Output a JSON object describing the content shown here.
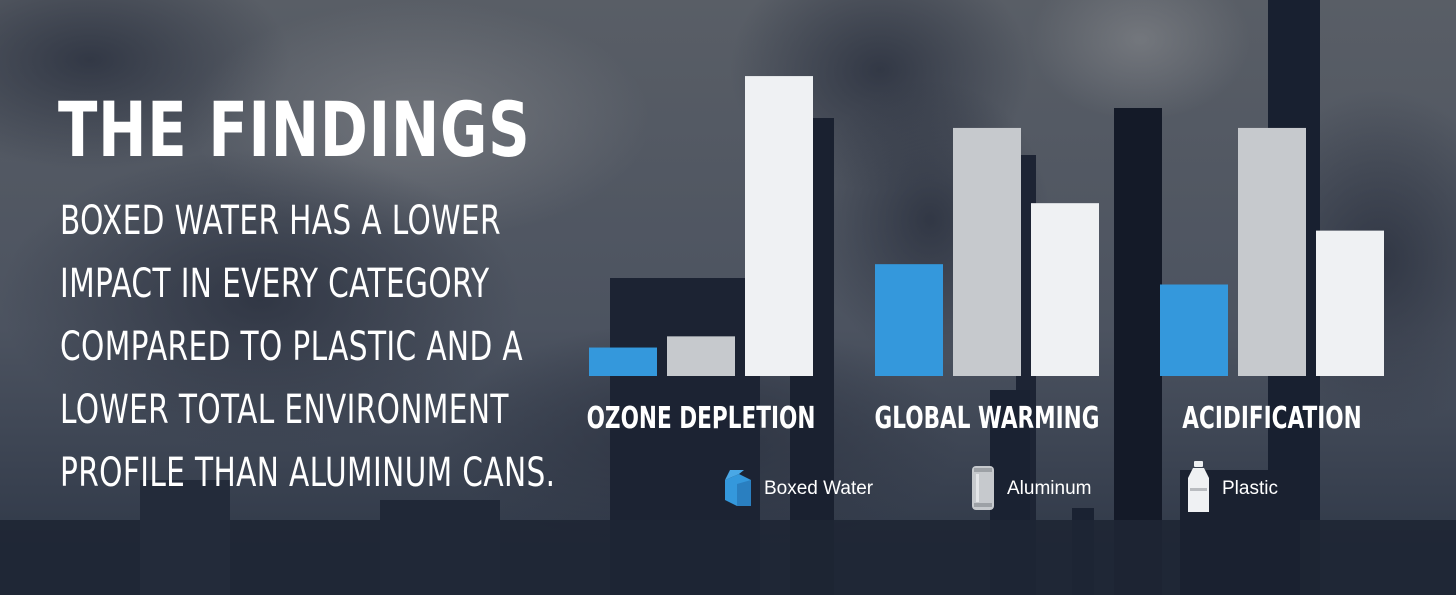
{
  "headline": "THE FINDINGS",
  "body_text": "BOXED WATER HAS A LOWER IMPACT IN EVERY CATEGORY COMPARED TO PLASTIC AND A LOWER TOTAL ENVIRONMENT PROFILE THAN ALUMINUM CANS.",
  "colors": {
    "boxed_water": "#3498dc",
    "aluminum": "#c6c9cd",
    "plastic": "#eff1f3"
  },
  "legend_icons": [
    "carton-icon",
    "can-icon",
    "bottle-icon"
  ],
  "chart_data": {
    "type": "bar",
    "categories": [
      "OZONE DEPLETION",
      "GLOBAL WARMING",
      "ACIDIFICATION"
    ],
    "series": [
      {
        "name": "Boxed Water",
        "values": [
          28,
          110,
          90
        ]
      },
      {
        "name": "Aluminum",
        "values": [
          39,
          244,
          244
        ]
      },
      {
        "name": "Plastic",
        "values": [
          295,
          170,
          143
        ]
      }
    ],
    "ylim": [
      0,
      300
    ],
    "grid": false,
    "legend_position": "bottom"
  }
}
